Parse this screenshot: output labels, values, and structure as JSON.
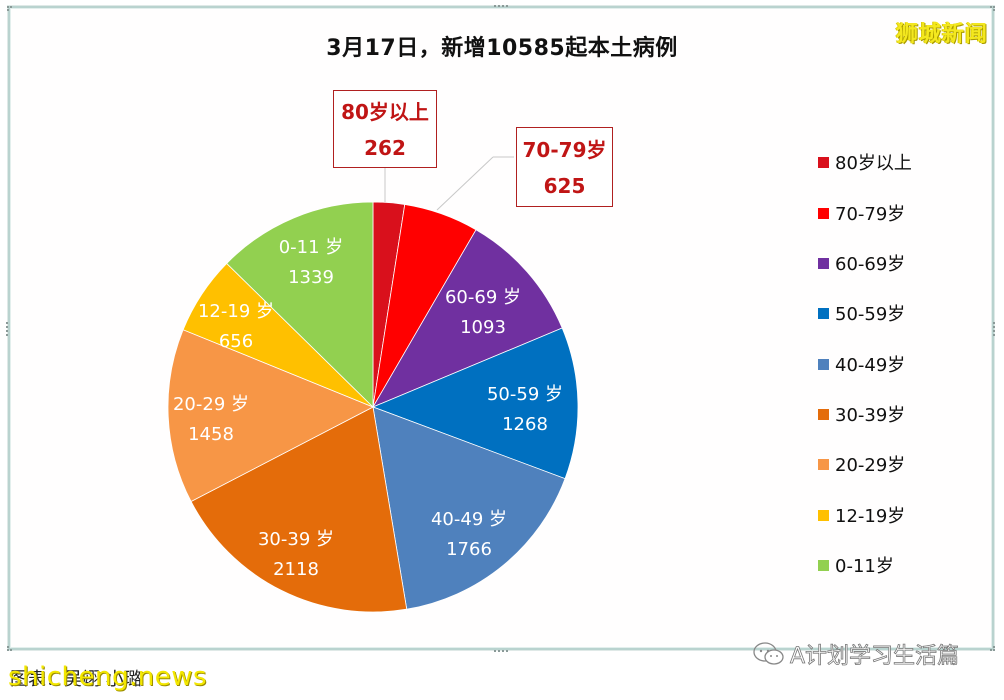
{
  "brand": "狮城新闻",
  "chart_data": {
    "type": "pie",
    "title": "3月17日，新增10585起本土病例",
    "total": 10585,
    "start_angle_deg": 0,
    "direction": "clockwise",
    "legend_position": "right",
    "slices": [
      {
        "label": "80岁以上",
        "value": 262,
        "color": "#d9101c"
      },
      {
        "label": "70-79岁",
        "value": 625,
        "color": "#ff0000"
      },
      {
        "label": "60-69岁",
        "value": 1093,
        "color": "#7030a0"
      },
      {
        "label": "50-59岁",
        "value": 1268,
        "color": "#0070c0"
      },
      {
        "label": "40-49岁",
        "value": 1766,
        "color": "#4f81bd"
      },
      {
        "label": "30-39岁",
        "value": 2118,
        "color": "#e46c0a"
      },
      {
        "label": "20-29岁",
        "value": 1458,
        "color": "#f79646"
      },
      {
        "label": "12-19岁",
        "value": 656,
        "color": "#ffc000"
      },
      {
        "label": "0-11岁",
        "value": 1339,
        "color": "#92d050"
      }
    ],
    "inner_labels": [
      {
        "label": "60-69 岁",
        "value": "1093"
      },
      {
        "label": "50-59 岁",
        "value": "1268"
      },
      {
        "label": "40-49 岁",
        "value": "1766"
      },
      {
        "label": "30-39 岁",
        "value": "2118"
      },
      {
        "label": "20-29 岁",
        "value": "1458"
      },
      {
        "label": "12-19 岁",
        "value": "656"
      },
      {
        "label": "0-11 岁",
        "value": "1339"
      }
    ],
    "callouts": [
      {
        "label": "80岁以上",
        "value": "262"
      },
      {
        "label": "70-79岁",
        "value": "625"
      }
    ],
    "legend": [
      "80岁以上",
      "70-79岁",
      "60-69岁",
      "50-59岁",
      "40-49岁",
      "30-39岁",
      "20-29岁",
      "12-19岁",
      "0-11岁"
    ]
  },
  "footer": {
    "source": "图表：吴翊 小璐",
    "site_watermark": "shicheng.news",
    "wechat_watermark": "A计划学习生活篇"
  }
}
